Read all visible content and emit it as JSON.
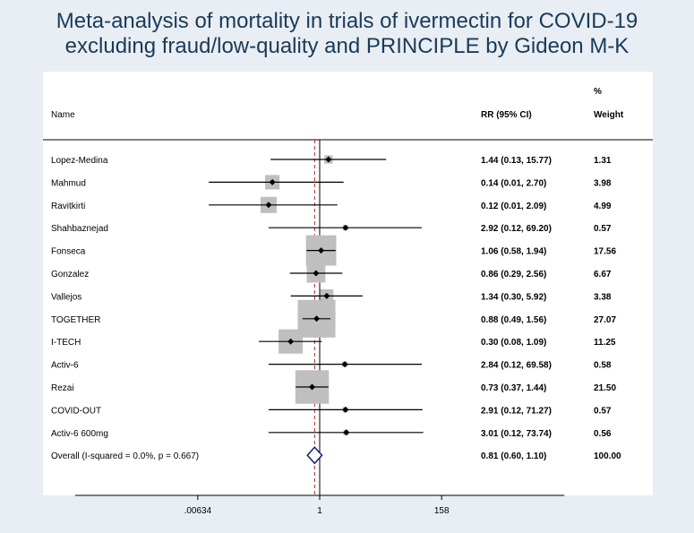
{
  "title_line1": "Meta-analysis of mortality in trials of ivermectin for COVID-19",
  "title_line2": "excluding fraud/low-quality and PRINCIPLE by Gideon M-K",
  "chart_data": {
    "type": "forest",
    "title": "Meta-analysis of mortality in trials of ivermectin for COVID-19 excluding fraud/low-quality and PRINCIPLE by Gideon M-K",
    "headers": {
      "name": "Name",
      "rr": "RR (95% CI)",
      "weight_line1": "%",
      "weight_line2": "Weight"
    },
    "x_scale": "log",
    "x_ticks": [
      {
        "value": 0.00634,
        "label": ".00634"
      },
      {
        "value": 1,
        "label": "1"
      },
      {
        "value": 158,
        "label": "158"
      }
    ],
    "studies": [
      {
        "name": "Lopez-Medina",
        "rr": 1.44,
        "lo": 0.13,
        "hi": 15.77,
        "ci_text": "1.44 (0.13, 15.77)",
        "weight": 1.31,
        "weight_text": "1.31"
      },
      {
        "name": "Mahmud",
        "rr": 0.14,
        "lo": 0.01,
        "hi": 2.7,
        "ci_text": "0.14 (0.01, 2.70)",
        "weight": 3.98,
        "weight_text": "3.98"
      },
      {
        "name": "Ravitkirti",
        "rr": 0.12,
        "lo": 0.01,
        "hi": 2.09,
        "ci_text": "0.12 (0.01, 2.09)",
        "weight": 4.99,
        "weight_text": "4.99"
      },
      {
        "name": "Shahbaznejad",
        "rr": 2.92,
        "lo": 0.12,
        "hi": 69.2,
        "ci_text": "2.92 (0.12, 69.20)",
        "weight": 0.57,
        "weight_text": "0.57"
      },
      {
        "name": "Fonseca",
        "rr": 1.06,
        "lo": 0.58,
        "hi": 1.94,
        "ci_text": "1.06 (0.58, 1.94)",
        "weight": 17.56,
        "weight_text": "17.56"
      },
      {
        "name": "Gonzalez",
        "rr": 0.86,
        "lo": 0.29,
        "hi": 2.56,
        "ci_text": "0.86 (0.29, 2.56)",
        "weight": 6.67,
        "weight_text": "6.67"
      },
      {
        "name": "Vallejos",
        "rr": 1.34,
        "lo": 0.3,
        "hi": 5.92,
        "ci_text": "1.34 (0.30, 5.92)",
        "weight": 3.38,
        "weight_text": "3.38"
      },
      {
        "name": "TOGETHER",
        "rr": 0.88,
        "lo": 0.49,
        "hi": 1.56,
        "ci_text": "0.88 (0.49, 1.56)",
        "weight": 27.07,
        "weight_text": "27.07"
      },
      {
        "name": "I-TECH",
        "rr": 0.3,
        "lo": 0.08,
        "hi": 1.09,
        "ci_text": "0.30 (0.08, 1.09)",
        "weight": 11.25,
        "weight_text": "11.25"
      },
      {
        "name": "Activ-6",
        "rr": 2.84,
        "lo": 0.12,
        "hi": 69.58,
        "ci_text": "2.84 (0.12, 69.58)",
        "weight": 0.58,
        "weight_text": "0.58"
      },
      {
        "name": "Rezai",
        "rr": 0.73,
        "lo": 0.37,
        "hi": 1.44,
        "ci_text": "0.73 (0.37, 1.44)",
        "weight": 21.5,
        "weight_text": "21.50"
      },
      {
        "name": "COVID-OUT",
        "rr": 2.91,
        "lo": 0.12,
        "hi": 71.27,
        "ci_text": "2.91 (0.12, 71.27)",
        "weight": 0.57,
        "weight_text": "0.57"
      },
      {
        "name": "Activ-6 600mg",
        "rr": 3.01,
        "lo": 0.12,
        "hi": 73.74,
        "ci_text": "3.01 (0.12, 73.74)",
        "weight": 0.56,
        "weight_text": "0.56"
      }
    ],
    "overall": {
      "name": "Overall  (I-squared = 0.0%, p = 0.667)",
      "rr": 0.81,
      "lo": 0.6,
      "hi": 1.1,
      "ci_text": "0.81 (0.60, 1.10)",
      "weight_text": "100.00"
    },
    "colors": {
      "background": "#e8eef3",
      "plot_background": "#ffffff",
      "title": "#1a3a5a",
      "box": "#bfbfbf",
      "overall_diamond": "#1a1a6e",
      "overall_line": "#b22222"
    }
  }
}
